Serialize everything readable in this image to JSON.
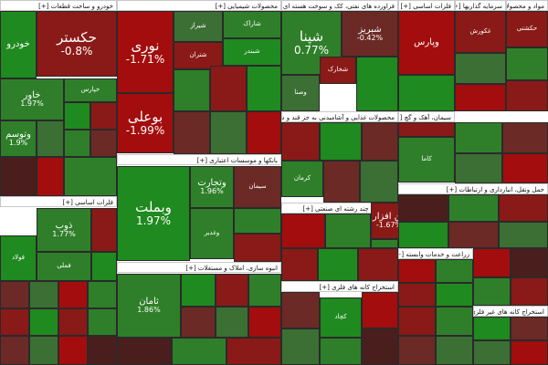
{
  "palette": {
    "g3": "#1f8a1f",
    "g2": "#2f7f2a",
    "g1": "#3b6f33",
    "r1": "#6b2a25",
    "r2": "#8a1a17",
    "r3": "#a30d0d",
    "dk": "#4a1e1c"
  },
  "sectors": [
    {
      "title": "خودرو و ساخت قطعات [+]"
    },
    {
      "title": "محصولات شیمیایی [+]"
    },
    {
      "title": "فراورده های نفتی، کک و سوخت هسته ای [+]"
    },
    {
      "title": "فلزات اساسی [+]"
    },
    {
      "title": "سرمایه گذاریها [+]"
    },
    {
      "title": "مواد و محصولات دارویی [+]"
    },
    {
      "title": "فلزات اساسی [+]"
    },
    {
      "title": "بانکها و موسسات اعتباری [+]"
    },
    {
      "title": "محصولات غذایی و آشامیدنی به جز قند و شکر [+]"
    },
    {
      "title": "سیمان، آهک و گچ [+]"
    },
    {
      "title": "شرکتهای چند رشته ای صنعتی [+]"
    },
    {
      "title": "حمل ونقل، انبارداری و ارتباطات [+]"
    },
    {
      "title": "انبوه سازی، املاک و مستغلات [+]"
    },
    {
      "title": "استخراج کانه های فلزی [+]"
    },
    {
      "title": "زراعت و خدمات وابسته [+]"
    },
    {
      "title": "استخراج کانه های غیر فلزی [+]"
    }
  ],
  "tiles": [
    {
      "sym": "حکستر",
      "chg": "-0.8%",
      "c": "r2"
    },
    {
      "sym": "خاور",
      "chg": "1.97%",
      "c": "g2"
    },
    {
      "sym": "نوری",
      "chg": "-1.71%",
      "c": "r3"
    },
    {
      "sym": "بوعلی",
      "chg": "-1.99%",
      "c": "r3"
    },
    {
      "sym": "شپنا",
      "chg": "0.77%",
      "c": "g2"
    },
    {
      "sym": "وبملت",
      "chg": "1.97%",
      "c": "g3"
    },
    {
      "sym": "ذوب",
      "chg": "1.77%",
      "c": "g2"
    },
    {
      "sym": "وتجارت",
      "chg": "1.96%",
      "c": "g2"
    },
    {
      "sym": "ثامان",
      "chg": "1.86%",
      "c": "g2"
    },
    {
      "sym": "شبریز",
      "chg": "-0.42%",
      "c": "r1"
    },
    {
      "sym": "فن افزار",
      "chg": "-1.67%",
      "c": "r2"
    },
    {
      "sym": "وتوسم",
      "chg": "1.9%",
      "c": "g2"
    },
    {
      "sym": "خودرو",
      "chg": "",
      "c": "g3"
    },
    {
      "sym": "خپارس",
      "chg": "",
      "c": "g2"
    },
    {
      "sym": "شیراز",
      "chg": "",
      "c": "g1"
    },
    {
      "sym": "شاراک",
      "chg": "",
      "c": "g2"
    },
    {
      "sym": "شخارک",
      "chg": "",
      "c": "r2"
    },
    {
      "sym": "کرمان",
      "chg": "",
      "c": "g2"
    },
    {
      "sym": "شبندر",
      "chg": "",
      "c": "g3"
    },
    {
      "sym": "شتران",
      "chg": "",
      "c": "r2"
    },
    {
      "sym": "وغدیر",
      "chg": "",
      "c": "g2"
    },
    {
      "sym": "وپارس",
      "chg": "",
      "c": "r3"
    },
    {
      "sym": "فولاد",
      "chg": "",
      "c": "g3"
    },
    {
      "sym": "فملی",
      "chg": "",
      "c": "g2"
    },
    {
      "sym": "غکورش",
      "chg": "",
      "c": "r2"
    },
    {
      "sym": "سیمان",
      "chg": "",
      "c": "r1"
    },
    {
      "sym": "وصنا",
      "chg": "",
      "c": "g1"
    },
    {
      "sym": "حکشتی",
      "chg": "",
      "c": "r2"
    },
    {
      "sym": "کاما",
      "chg": "",
      "c": "g2"
    },
    {
      "sym": "کچاد",
      "chg": "",
      "c": "g3"
    }
  ]
}
